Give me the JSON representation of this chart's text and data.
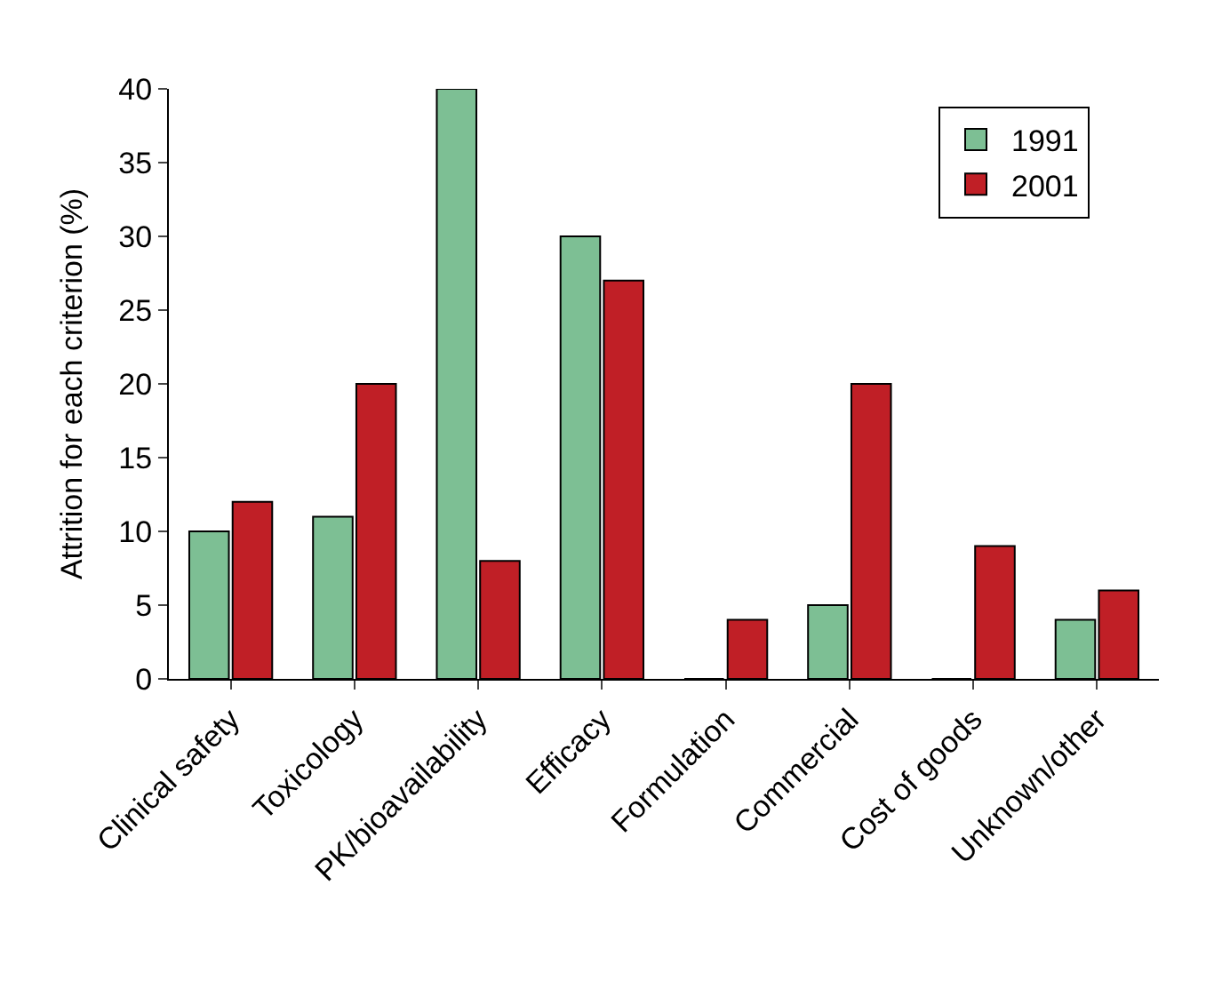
{
  "chart_data": {
    "type": "bar",
    "ylabel": "Attrition for each criterion (%)",
    "categories": [
      "Clinical safety",
      "Toxicology",
      "PK/bioavailability",
      "Efficacy",
      "Formulation",
      "Commercial",
      "Cost of goods",
      "Unknown/other"
    ],
    "series": [
      {
        "name": "1991",
        "color": "#7dbf94",
        "values": [
          10,
          11,
          40,
          30,
          0,
          5,
          0,
          4
        ]
      },
      {
        "name": "2001",
        "color": "#c01f26",
        "values": [
          12,
          20,
          8,
          27,
          4,
          20,
          9,
          6
        ]
      }
    ],
    "ylim": [
      0,
      40
    ],
    "yticks": [
      0,
      5,
      10,
      15,
      20,
      25,
      30,
      35,
      40
    ],
    "legend": "top right"
  }
}
